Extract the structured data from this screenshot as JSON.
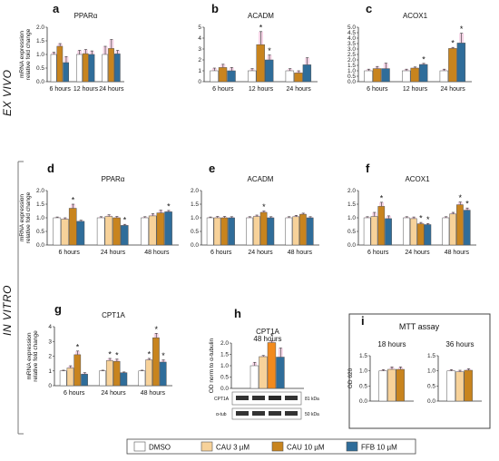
{
  "colors": {
    "DMSO": "#ffffff",
    "CAU3": "#f7d29a",
    "CAU10": "#c8841e",
    "FFB": "#2f6d9a",
    "CAU10_h": "#f28a1e",
    "err": "#e8a0c8"
  },
  "side_labels": {
    "ex_vivo": "EX VIVO",
    "in_vitro": "IN VITRO"
  },
  "legend": [
    {
      "key": "DMSO",
      "label": "DMSO"
    },
    {
      "key": "CAU3",
      "label": "CAU 3 µM"
    },
    {
      "key": "CAU10",
      "label": "CAU 10 µM"
    },
    {
      "key": "FFB",
      "label": "FFB 10 µM"
    }
  ],
  "mtt_box_title": "MTT assay",
  "blot": {
    "rows": [
      "CPT1A",
      "α-tub"
    ],
    "kda": [
      "81 kDa",
      "50 kDa"
    ]
  },
  "chart_data": [
    {
      "id": "a",
      "letter": "a",
      "title": "PPARα",
      "type": "bar",
      "ylabel": [
        "mRNA expression",
        "relative fold change"
      ],
      "ylim": [
        0,
        2.0
      ],
      "ticks": [
        0,
        0.5,
        1.0,
        1.5,
        2.0
      ],
      "series": [
        "DMSO",
        "CAU10",
        "FFB"
      ],
      "categories": [
        "6 hours",
        "12 hours",
        "24 hours"
      ],
      "values": [
        [
          1.0,
          1.3,
          0.7
        ],
        [
          1.0,
          1.03,
          1.0
        ],
        [
          1.0,
          1.22,
          1.02
        ]
      ],
      "errors": [
        [
          0.08,
          0.1,
          0.22
        ],
        [
          0.15,
          0.15,
          0.13
        ],
        [
          0.3,
          0.33,
          0.13
        ]
      ],
      "stars": [
        [
          0,
          0,
          0
        ],
        [
          0,
          0,
          0
        ],
        [
          0,
          0,
          0
        ]
      ]
    },
    {
      "id": "b",
      "letter": "b",
      "title": "ACADM",
      "type": "bar",
      "ylabel": [],
      "ylim": [
        0,
        5.0
      ],
      "ticks": [
        0,
        1,
        2,
        3,
        4,
        5
      ],
      "series": [
        "DMSO",
        "CAU10",
        "FFB"
      ],
      "categories": [
        "6 hours",
        "12 hours",
        "24 hours"
      ],
      "values": [
        [
          1.0,
          1.3,
          1.0
        ],
        [
          1.0,
          3.4,
          2.0
        ],
        [
          1.0,
          0.8,
          1.55
        ]
      ],
      "errors": [
        [
          0.25,
          0.3,
          0.3
        ],
        [
          0.2,
          1.2,
          0.45
        ],
        [
          0.2,
          0.2,
          0.65
        ]
      ],
      "stars": [
        [
          0,
          0,
          0
        ],
        [
          0,
          1,
          1
        ],
        [
          0,
          0,
          0
        ]
      ]
    },
    {
      "id": "c",
      "letter": "c",
      "title": "ACOX1",
      "type": "bar",
      "ylabel": [],
      "ylim": [
        0,
        5.0
      ],
      "ticks": [
        0,
        0.5,
        1.0,
        1.5,
        2.0,
        2.5,
        3.0,
        3.5,
        4.0,
        4.5,
        5.0
      ],
      "series": [
        "DMSO",
        "CAU10",
        "FFB"
      ],
      "categories": [
        "6 hours",
        "12 hours",
        "24 hours"
      ],
      "values": [
        [
          1.0,
          1.2,
          1.2
        ],
        [
          1.0,
          1.25,
          1.58
        ],
        [
          1.0,
          3.05,
          3.55
        ]
      ],
      "errors": [
        [
          0.15,
          0.2,
          0.5
        ],
        [
          0.15,
          0.1,
          0.1
        ],
        [
          0.15,
          0.1,
          0.9
        ]
      ],
      "stars": [
        [
          0,
          0,
          0
        ],
        [
          0,
          0,
          1
        ],
        [
          0,
          1,
          1
        ]
      ]
    },
    {
      "id": "d",
      "letter": "d",
      "title": "PPARα",
      "type": "bar",
      "ylabel": [
        "mRNA expression",
        "relative fold change"
      ],
      "ylim": [
        0,
        2.0
      ],
      "ticks": [
        0,
        0.5,
        1.0,
        1.5,
        2.0
      ],
      "series": [
        "DMSO",
        "CAU3",
        "CAU10",
        "FFB"
      ],
      "categories": [
        "6 hours",
        "24 hours",
        "48 hours"
      ],
      "values": [
        [
          1.0,
          0.95,
          1.35,
          0.87
        ],
        [
          1.0,
          1.05,
          1.0,
          0.72
        ],
        [
          1.0,
          1.07,
          1.18,
          1.22
        ]
      ],
      "errors": [
        [
          0.03,
          0.05,
          0.15,
          0.04
        ],
        [
          0.04,
          0.06,
          0.05,
          0.04
        ],
        [
          0.04,
          0.08,
          0.1,
          0.05
        ]
      ],
      "stars": [
        [
          0,
          0,
          1,
          0
        ],
        [
          0,
          0,
          0,
          1
        ],
        [
          0,
          0,
          0,
          1
        ]
      ]
    },
    {
      "id": "e",
      "letter": "e",
      "title": "ACADM",
      "type": "bar",
      "ylabel": [],
      "ylim": [
        0,
        2.0
      ],
      "ticks": [
        0,
        0.5,
        1.0,
        1.5,
        2.0
      ],
      "series": [
        "DMSO",
        "CAU3",
        "CAU10",
        "FFB"
      ],
      "categories": [
        "6 hours",
        "24 hours",
        "48 hours"
      ],
      "values": [
        [
          1.0,
          1.0,
          1.0,
          1.0
        ],
        [
          1.0,
          1.05,
          1.2,
          1.0
        ],
        [
          1.0,
          1.04,
          1.13,
          1.0
        ]
      ],
      "errors": [
        [
          0.03,
          0.05,
          0.05,
          0.04
        ],
        [
          0.04,
          0.05,
          0.05,
          0.04
        ],
        [
          0.04,
          0.05,
          0.04,
          0.04
        ]
      ],
      "stars": [
        [
          0,
          0,
          0,
          0
        ],
        [
          0,
          0,
          1,
          0
        ],
        [
          0,
          0,
          0,
          0
        ]
      ]
    },
    {
      "id": "f",
      "letter": "f",
      "title": "ACOX1",
      "type": "bar",
      "ylabel": [],
      "ylim": [
        0,
        2.0
      ],
      "ticks": [
        0,
        0.5,
        1.0,
        1.5,
        2.0
      ],
      "series": [
        "DMSO",
        "CAU3",
        "CAU10",
        "FFB"
      ],
      "categories": [
        "6 hours",
        "24 hours",
        "48 hours"
      ],
      "values": [
        [
          1.0,
          1.05,
          1.42,
          0.97
        ],
        [
          1.0,
          0.97,
          0.78,
          0.75
        ],
        [
          1.0,
          1.14,
          1.48,
          1.28
        ]
      ],
      "errors": [
        [
          0.04,
          0.15,
          0.15,
          0.1
        ],
        [
          0.04,
          0.06,
          0.05,
          0.04
        ],
        [
          0.04,
          0.06,
          0.1,
          0.08
        ]
      ],
      "stars": [
        [
          0,
          0,
          1,
          0
        ],
        [
          0,
          0,
          1,
          1
        ],
        [
          0,
          0,
          1,
          1
        ]
      ]
    },
    {
      "id": "g",
      "letter": "g",
      "title": "CPT1A",
      "type": "bar",
      "ylabel": [
        "mRNA expression",
        "relative fold change"
      ],
      "ylim": [
        0,
        4.0
      ],
      "ticks": [
        0,
        1,
        2,
        3,
        4
      ],
      "series": [
        "DMSO",
        "CAU3",
        "CAU10",
        "FFB"
      ],
      "categories": [
        "6 hours",
        "24 hours",
        "48 hours"
      ],
      "values": [
        [
          1.0,
          1.2,
          2.1,
          0.78
        ],
        [
          1.0,
          1.7,
          1.65,
          0.88
        ],
        [
          1.0,
          1.75,
          3.25,
          1.6
        ]
      ],
      "errors": [
        [
          0.05,
          0.15,
          0.25,
          0.1
        ],
        [
          0.05,
          0.15,
          0.15,
          0.05
        ],
        [
          0.05,
          0.1,
          0.3,
          0.15
        ]
      ],
      "stars": [
        [
          0,
          0,
          1,
          0
        ],
        [
          0,
          1,
          1,
          0
        ],
        [
          0,
          1,
          1,
          1
        ]
      ]
    },
    {
      "id": "h",
      "letter": "h",
      "title": "CPT1A",
      "subtitle": "48 hours",
      "type": "bar",
      "ylabel": [
        "OD norm to α-tubulin"
      ],
      "ylim": [
        0,
        2.0
      ],
      "ticks": [
        0,
        0.5,
        1.0,
        1.5,
        2.0
      ],
      "series": [
        "DMSO",
        "CAU3",
        "CAU10_h",
        "FFB"
      ],
      "categories": [
        ""
      ],
      "values": [
        [
          1.0,
          1.4,
          2.02,
          1.38
        ]
      ],
      "errors": [
        [
          0.15,
          0.05,
          0.08,
          0.4
        ]
      ],
      "stars": [
        [
          0,
          0,
          1,
          0
        ]
      ]
    },
    {
      "id": "i1",
      "letter": "i",
      "title": "18 hours",
      "type": "bar",
      "ylabel": [
        "OD 620"
      ],
      "ylim": [
        0,
        1.5
      ],
      "ticks": [
        0,
        0.5,
        1.0,
        1.5
      ],
      "series": [
        "DMSO",
        "CAU3",
        "CAU10"
      ],
      "categories": [
        ""
      ],
      "values": [
        [
          1.0,
          1.05,
          1.05
        ]
      ],
      "errors": [
        [
          0.04,
          0.08,
          0.08
        ]
      ],
      "stars": [
        [
          0,
          0,
          0
        ]
      ]
    },
    {
      "id": "i2",
      "letter": "",
      "title": "36 hours",
      "type": "bar",
      "ylabel": [],
      "ylim": [
        0,
        1.5
      ],
      "ticks": [
        0,
        0.5,
        1.0,
        1.5
      ],
      "series": [
        "DMSO",
        "CAU3",
        "CAU10"
      ],
      "categories": [
        ""
      ],
      "values": [
        [
          1.0,
          0.97,
          1.02
        ]
      ],
      "errors": [
        [
          0.04,
          0.05,
          0.05
        ]
      ],
      "stars": [
        [
          0,
          0,
          0
        ]
      ]
    }
  ]
}
